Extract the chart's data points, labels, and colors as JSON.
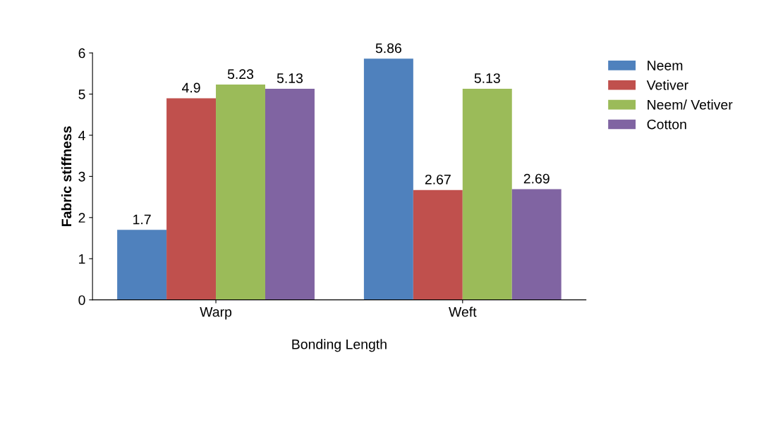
{
  "chart_data": {
    "type": "bar",
    "xlabel": "Bonding Length",
    "ylabel": "Fabric stiffness",
    "categories": [
      "Warp",
      "Weft"
    ],
    "series": [
      {
        "name": "Neem",
        "color": "#4f81bd",
        "values": [
          1.7,
          5.86
        ]
      },
      {
        "name": "Vetiver",
        "color": "#c0504d",
        "values": [
          4.9,
          2.67
        ]
      },
      {
        "name": "Neem/ Vetiver",
        "color": "#9bbb59",
        "values": [
          5.23,
          5.13
        ]
      },
      {
        "name": "Cotton",
        "color": "#8064a2",
        "values": [
          5.13,
          2.69
        ]
      }
    ],
    "ylim": [
      0,
      6
    ],
    "yticks": [
      0,
      1,
      2,
      3,
      4,
      5,
      6
    ],
    "data_labels": true,
    "legend": "top right",
    "grid": false
  }
}
